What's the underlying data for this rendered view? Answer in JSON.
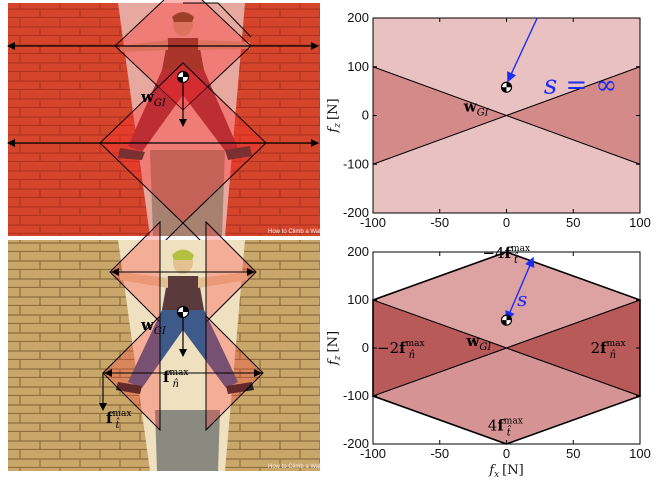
{
  "figure": {
    "top_photo": {
      "watermark": "How to Climb a Wall"
    },
    "bottom_photo": {
      "watermark": "How to Climb a Wall"
    },
    "top_photo_labels": {
      "w_main": "w",
      "w_sub": "GI"
    },
    "bottom_photo_labels": {
      "w_main": "w",
      "w_sub": "GI",
      "fn_main": "f",
      "fn_sub": "n̂",
      "fn_sup": "max",
      "ft_main": "f",
      "ft_sub": "t̂",
      "ft_sup": "max"
    }
  },
  "chart_data": [
    {
      "type": "area",
      "xlim": [
        -100,
        100
      ],
      "ylim": [
        -200,
        200
      ],
      "xticks": [
        -100,
        -50,
        0,
        50,
        100
      ],
      "yticks": [
        -200,
        -100,
        0,
        100,
        200
      ],
      "xlabel": "",
      "ylabel": "f_z [N]",
      "ylabel_main": "f",
      "ylabel_sub": "z",
      "ylabel_unit": "[N]",
      "background_color": "#e9c1c1",
      "region_color": "#d58a8a",
      "regions": [
        {
          "name": "cone-left",
          "points": [
            [
              -100,
              100
            ],
            [
              0,
              0
            ],
            [
              -100,
              -100
            ]
          ]
        },
        {
          "name": "cone-right",
          "points": [
            [
              100,
              100
            ],
            [
              0,
              0
            ],
            [
              100,
              -100
            ]
          ]
        }
      ],
      "point": {
        "x": 0,
        "y": 58
      },
      "arrow": {
        "from": [
          23,
          200
        ],
        "to": [
          1,
          70
        ],
        "color": "#1b2cf5"
      },
      "annotations": {
        "w_main": "w",
        "w_sub": "GI",
        "s_label": "s = ∞"
      }
    },
    {
      "type": "area",
      "xlim": [
        -100,
        100
      ],
      "ylim": [
        -200,
        200
      ],
      "xticks": [
        -100,
        -50,
        0,
        50,
        100
      ],
      "yticks": [
        -200,
        -100,
        0,
        100,
        200
      ],
      "xlabel": "f_x [N]",
      "xlabel_main": "f",
      "xlabel_sub": "x",
      "xlabel_unit": "[N]",
      "ylabel": "f_z [N]",
      "ylabel_main": "f",
      "ylabel_sub": "z",
      "ylabel_unit": "[N]",
      "hexagon": [
        [
          0,
          200
        ],
        [
          100,
          100
        ],
        [
          100,
          -100
        ],
        [
          0,
          -200
        ],
        [
          -100,
          -100
        ],
        [
          -100,
          100
        ]
      ],
      "regions": [
        {
          "name": "upper-wedge",
          "points": [
            [
              0,
              200
            ],
            [
              100,
              100
            ],
            [
              0,
              0
            ],
            [
              -100,
              100
            ]
          ],
          "color": "#dda3a3"
        },
        {
          "name": "lower-wedge",
          "points": [
            [
              0,
              -200
            ],
            [
              100,
              -100
            ],
            [
              0,
              0
            ],
            [
              -100,
              -100
            ]
          ],
          "color": "#d59393"
        },
        {
          "name": "left-wedge",
          "points": [
            [
              -100,
              100
            ],
            [
              0,
              0
            ],
            [
              -100,
              -100
            ]
          ],
          "color": "#b85a5a"
        },
        {
          "name": "right-wedge",
          "points": [
            [
              100,
              100
            ],
            [
              0,
              0
            ],
            [
              100,
              -100
            ]
          ],
          "color": "#b85a5a"
        }
      ],
      "point": {
        "x": 0,
        "y": 58
      },
      "arrow": {
        "from": [
          0,
          58
        ],
        "to": [
          20,
          188
        ],
        "color": "#1b2cf5",
        "double": true
      },
      "annotations": {
        "w_main": "w",
        "w_sub": "GI",
        "s_label": "s",
        "top_label": {
          "pre": "−4",
          "main": "f",
          "sub": "t̂",
          "sup": "max"
        },
        "bottom_label": {
          "pre": "4",
          "main": "f",
          "sub": "t̂",
          "sup": "max"
        },
        "left_label": {
          "pre": "−2",
          "main": "f",
          "sub": "n̂",
          "sup": "max"
        },
        "right_label": {
          "pre": "2",
          "main": "f",
          "sub": "n̂",
          "sup": "max"
        }
      }
    }
  ]
}
